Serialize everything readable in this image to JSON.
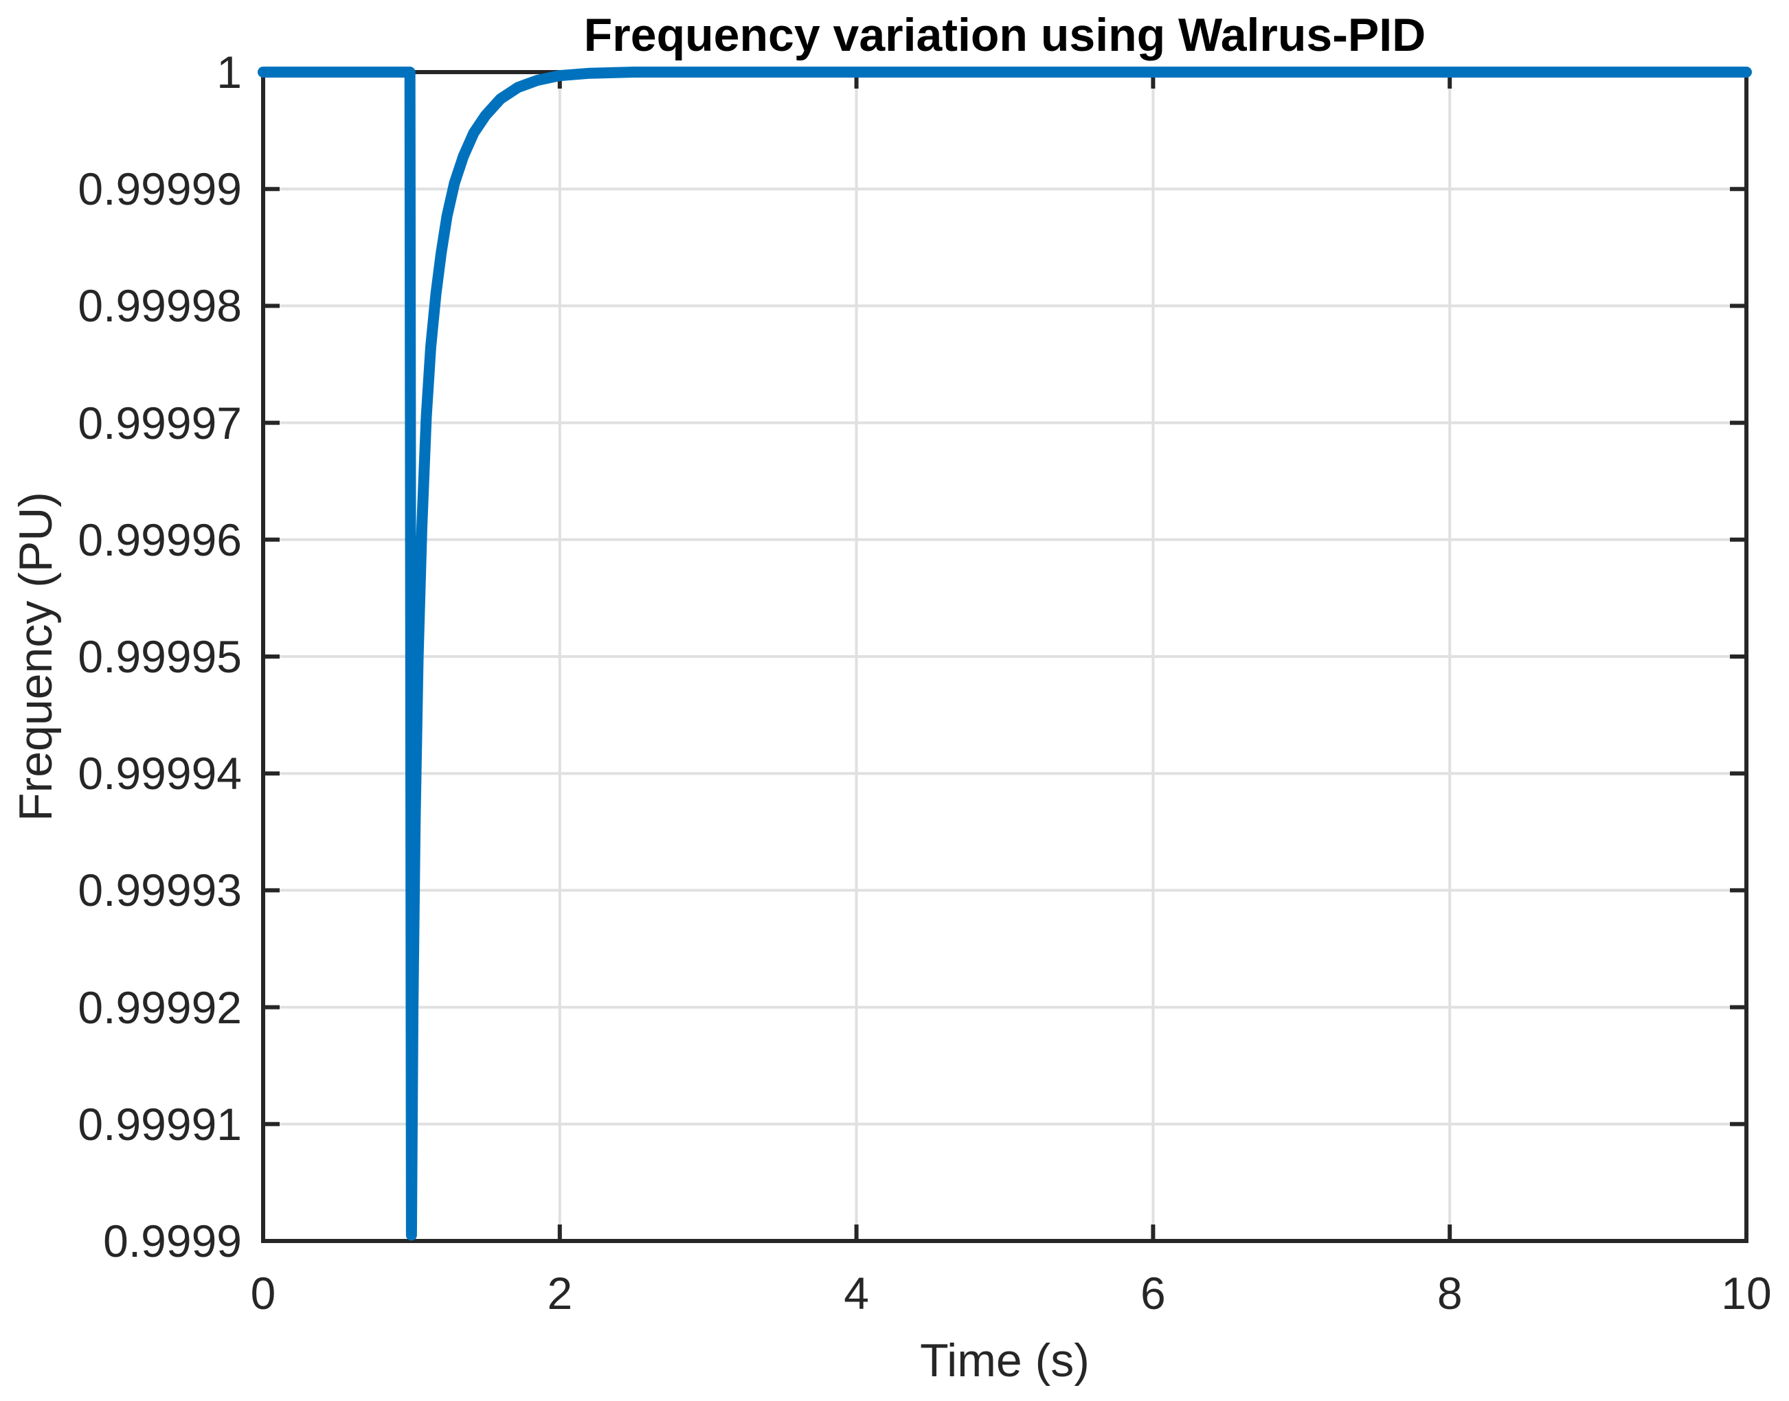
{
  "figure": {
    "background": "#FFFFFF"
  },
  "chart_data": {
    "type": "line",
    "title": "Frequency variation using Walrus-PID",
    "xlabel": "Time (s)",
    "ylabel": "Frequency (PU)",
    "xlim": [
      0,
      10
    ],
    "ylim": [
      0.9999,
      1.0
    ],
    "grid": true,
    "legend": "none",
    "box": true,
    "tick_direction": "in",
    "x_ticks": [
      0,
      2,
      4,
      6,
      8,
      10
    ],
    "x_tick_labels": [
      "0",
      "2",
      "4",
      "6",
      "8",
      "10"
    ],
    "y_ticks": [
      0.9999,
      0.99991,
      0.99992,
      0.99993,
      0.99994,
      0.99995,
      0.99996,
      0.99997,
      0.99998,
      0.99999,
      1
    ],
    "y_tick_labels": [
      "0.9999",
      "0.99991",
      "0.99992",
      "0.99993",
      "0.99994",
      "0.99995",
      "0.99996",
      "0.99997",
      "0.99998",
      "0.99999",
      "1"
    ],
    "series": [
      {
        "name": "frequency",
        "color": "#0072BD",
        "x": [
          0,
          0.5,
          0.99,
          1.0,
          1.01,
          1.025,
          1.045,
          1.07,
          1.1,
          1.13,
          1.165,
          1.2,
          1.24,
          1.29,
          1.35,
          1.42,
          1.5,
          1.6,
          1.72,
          1.85,
          2.0,
          2.2,
          2.5,
          3,
          4,
          5,
          6,
          7,
          8,
          9,
          10
        ],
        "y": [
          1,
          1,
          1,
          0.9999005,
          0.99992,
          0.999936,
          0.99995,
          0.999961,
          0.9999705,
          0.9999765,
          0.999981,
          0.9999845,
          0.9999877,
          0.9999905,
          0.9999928,
          0.9999948,
          0.9999963,
          0.9999977,
          0.9999987,
          0.9999993,
          0.9999997,
          0.9999999,
          1,
          1,
          1,
          1,
          1,
          1,
          1,
          1,
          1
        ]
      }
    ],
    "annotations": {
      "dip_time": 1,
      "dip_min_value": 0.9999
    }
  },
  "colors": {
    "line": "#0072BD",
    "axis": "#262626",
    "grid": "#E0E0E0",
    "title": "#000000",
    "background": "#FFFFFF"
  }
}
